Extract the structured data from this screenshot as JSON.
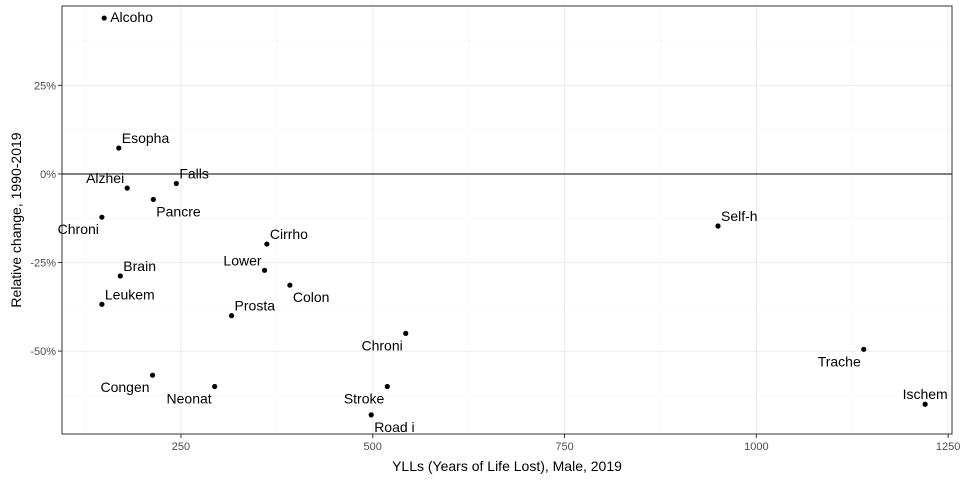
{
  "chart_data": {
    "type": "scatter",
    "title": "",
    "xlabel": "YLLs (Years of Life Lost), Male, 2019",
    "ylabel": "Relative change, 1990-2019",
    "xlim": [
      95,
      1255
    ],
    "ylim": [
      -0.734,
      0.474
    ],
    "x_ticks": [
      250,
      500,
      750,
      1000,
      1250
    ],
    "x_tick_labels": [
      "250",
      "500",
      "750",
      "1000",
      "1250"
    ],
    "y_ticks": [
      -0.5,
      -0.25,
      0,
      0.25
    ],
    "y_tick_labels": [
      "-50%",
      "-25%",
      "0%",
      "25%"
    ],
    "reference_line_y": 0,
    "grid": true,
    "points": [
      {
        "label": "Alcoho",
        "x": 150,
        "y": 0.44,
        "label_pos": "right"
      },
      {
        "label": "Esopha",
        "x": 169,
        "y": 0.073,
        "label_pos": "above-right"
      },
      {
        "label": "Alzhei",
        "x": 180,
        "y": -0.04,
        "label_pos": "above-left"
      },
      {
        "label": "Falls",
        "x": 244,
        "y": -0.027,
        "label_pos": "above-right"
      },
      {
        "label": "Pancre",
        "x": 214,
        "y": -0.072,
        "label_pos": "below-right"
      },
      {
        "label": "Chroni",
        "x": 147,
        "y": -0.122,
        "label_pos": "below-left"
      },
      {
        "label": "Cirrho",
        "x": 362,
        "y": -0.198,
        "label_pos": "above-right"
      },
      {
        "label": "Lower",
        "x": 359,
        "y": -0.272,
        "label_pos": "above-left"
      },
      {
        "label": "Brain",
        "x": 171,
        "y": -0.288,
        "label_pos": "above-right"
      },
      {
        "label": "Colon",
        "x": 392,
        "y": -0.314,
        "label_pos": "below-right"
      },
      {
        "label": "Leukem",
        "x": 147,
        "y": -0.368,
        "label_pos": "above-right"
      },
      {
        "label": "Prosta",
        "x": 316,
        "y": -0.4,
        "label_pos": "above-right"
      },
      {
        "label": "Chroni",
        "x": 543,
        "y": -0.45,
        "label_pos": "below-left"
      },
      {
        "label": "Congen",
        "x": 213,
        "y": -0.568,
        "label_pos": "below-left"
      },
      {
        "label": "Neonat",
        "x": 294,
        "y": -0.6,
        "label_pos": "below-left"
      },
      {
        "label": "Stroke",
        "x": 519,
        "y": -0.6,
        "label_pos": "below-left"
      },
      {
        "label": "Road i",
        "x": 498,
        "y": -0.68,
        "label_pos": "below-right"
      },
      {
        "label": "Self-h",
        "x": 950,
        "y": -0.147,
        "label_pos": "above-right"
      },
      {
        "label": "Trache",
        "x": 1140,
        "y": -0.495,
        "label_pos": "below-left"
      },
      {
        "label": "Ischem",
        "x": 1220,
        "y": -0.65,
        "label_pos": "above"
      }
    ]
  }
}
